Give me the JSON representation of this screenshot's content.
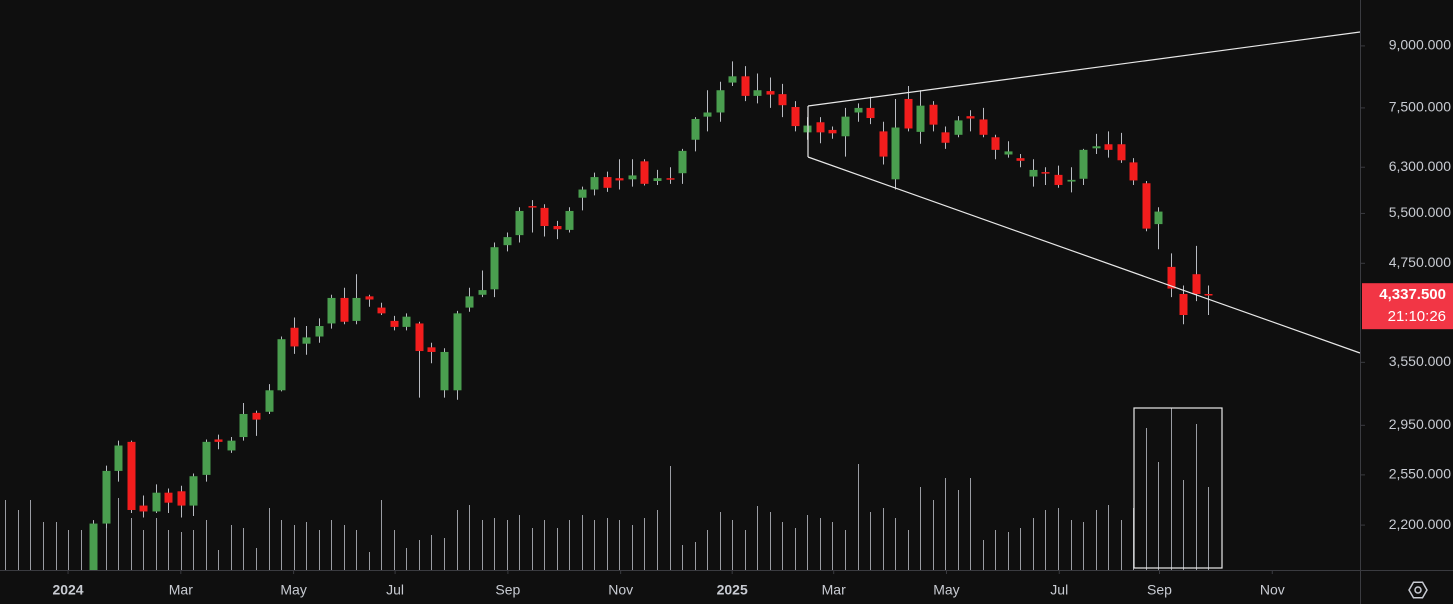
{
  "chart_data": {
    "type": "candlestick",
    "log_scale": true,
    "xlim": [
      -5.43,
      103.1
    ],
    "ylim": [
      1928,
      10300
    ],
    "yticks": [
      {
        "value": 9000,
        "label": "9,000.000"
      },
      {
        "value": 7500,
        "label": "7,500.000"
      },
      {
        "value": 6300,
        "label": "6,300.000"
      },
      {
        "value": 5500,
        "label": "5,500.000"
      },
      {
        "value": 4750,
        "label": "4,750.000"
      },
      {
        "value": 3550,
        "label": "3,550.000"
      },
      {
        "value": 2950,
        "label": "2,950.000"
      },
      {
        "value": 2550,
        "label": "2,550.000"
      },
      {
        "value": 2200,
        "label": "2,200.000"
      }
    ],
    "xticks": [
      {
        "value": 0,
        "label": "2024"
      },
      {
        "value": 9,
        "label": "Mar"
      },
      {
        "value": 18,
        "label": "May"
      },
      {
        "value": 26.1,
        "label": "Jul"
      },
      {
        "value": 35.1,
        "label": "Sep"
      },
      {
        "value": 44.1,
        "label": "Nov"
      },
      {
        "value": 53,
        "label": "2025"
      },
      {
        "value": 61.1,
        "label": "Mar"
      },
      {
        "value": 70.1,
        "label": "May"
      },
      {
        "value": 79.1,
        "label": "Jul"
      },
      {
        "value": 87.1,
        "label": "Sep"
      },
      {
        "value": 96.1,
        "label": "Nov"
      }
    ],
    "up_color": "#4a9e4f",
    "down_color": "#f21d1d",
    "x": [
      2,
      3,
      4,
      5,
      6,
      7,
      8,
      9,
      10,
      11,
      12,
      13,
      14,
      15,
      16,
      17,
      18,
      19,
      20,
      21,
      22,
      23,
      24,
      25,
      26,
      27,
      28,
      29,
      30,
      31,
      32,
      33,
      34,
      35,
      36,
      37,
      38,
      39,
      40,
      41,
      42,
      43,
      44,
      45,
      46,
      47,
      48,
      49,
      50,
      51,
      52,
      53,
      54,
      55,
      56,
      57,
      58,
      59,
      60,
      61,
      62,
      63,
      64,
      65,
      66,
      67,
      68,
      69,
      70,
      71,
      72,
      73,
      74,
      75,
      76,
      77,
      78,
      79,
      80,
      81,
      82,
      83,
      84,
      85,
      86,
      87,
      88,
      89,
      90,
      91
    ],
    "open": [
      1880,
      2210,
      2580,
      2810,
      2330,
      2290,
      2420,
      2430,
      2330,
      2550,
      2830,
      2740,
      2850,
      3060,
      3070,
      3270,
      3930,
      3750,
      3830,
      3980,
      4290,
      4010,
      4310,
      4170,
      4010,
      3940,
      3980,
      3710,
      3270,
      3270,
      4170,
      4330,
      4400,
      5010,
      5160,
      5620,
      5590,
      5300,
      5240,
      5760,
      5900,
      6120,
      6100,
      6080,
      6410,
      6050,
      6100,
      6190,
      6830,
      7310,
      7400,
      8080,
      8230,
      7770,
      7880,
      7810,
      7520,
      6980,
      7190,
      7030,
      6900,
      7400,
      7500,
      7000,
      6080,
      7700,
      6990,
      7570,
      6980,
      6930,
      7320,
      7250,
      6880,
      6540,
      6470,
      6130,
      6210,
      6160,
      6040,
      6090,
      6660,
      6740,
      6740,
      6390,
      6010,
      5330,
      4700,
      4340,
      4600,
      4340
    ],
    "high": [
      2230,
      2620,
      2820,
      2820,
      2400,
      2480,
      2450,
      2470,
      2560,
      2830,
      2870,
      2850,
      3150,
      3080,
      3330,
      3830,
      4050,
      3950,
      4040,
      4330,
      4420,
      4600,
      4330,
      4230,
      4070,
      4100,
      4000,
      3760,
      3700,
      4130,
      4420,
      4650,
      5050,
      5200,
      5600,
      5720,
      5650,
      5380,
      5600,
      5950,
      6200,
      6220,
      6450,
      6450,
      6450,
      6250,
      6300,
      6650,
      7300,
      7900,
      8100,
      8600,
      8480,
      8300,
      8200,
      8050,
      7650,
      7300,
      7300,
      7100,
      7500,
      7600,
      7750,
      7200,
      7700,
      8000,
      7900,
      7650,
      7100,
      7320,
      7450,
      7500,
      6930,
      6800,
      6550,
      6450,
      6300,
      6330,
      6300,
      6650,
      6950,
      7000,
      6970,
      6470,
      6050,
      5600,
      4890,
      4450,
      5000,
      4450
    ],
    "low": [
      1850,
      2180,
      2500,
      2280,
      2250,
      2280,
      2280,
      2250,
      2260,
      2500,
      2750,
      2720,
      2820,
      2860,
      3050,
      3260,
      3640,
      3630,
      3760,
      3920,
      3970,
      3970,
      4180,
      4080,
      3900,
      3900,
      3200,
      3540,
      3200,
      3180,
      4120,
      4300,
      4300,
      4920,
      5050,
      5200,
      5140,
      5100,
      5200,
      5550,
      5800,
      5860,
      5900,
      5950,
      5970,
      5980,
      6000,
      6000,
      6600,
      7000,
      7200,
      8000,
      7650,
      7600,
      7500,
      7300,
      7000,
      6830,
      6760,
      6850,
      6500,
      7200,
      7150,
      6350,
      5900,
      7000,
      6750,
      7000,
      6650,
      6880,
      7000,
      6880,
      6450,
      6480,
      6300,
      5950,
      5980,
      5930,
      5850,
      5980,
      6550,
      6480,
      6380,
      5980,
      5220,
      4950,
      4300,
      3970,
      4250,
      4080
    ],
    "close": [
      2210,
      2580,
      2780,
      2300,
      2290,
      2420,
      2350,
      2330,
      2540,
      2810,
      2810,
      2820,
      3050,
      3000,
      3270,
      3800,
      3720,
      3820,
      3950,
      4290,
      4000,
      4290,
      4270,
      4100,
      3940,
      4060,
      3670,
      3660,
      3660,
      4100,
      4310,
      4390,
      4980,
      5130,
      5540,
      5600,
      5300,
      5250,
      5540,
      5900,
      6120,
      5930,
      6060,
      6150,
      6000,
      6100,
      6080,
      6610,
      7260,
      7400,
      7900,
      8230,
      7770,
      7900,
      7800,
      7560,
      7110,
      7120,
      6980,
      6960,
      7310,
      7500,
      7280,
      6500,
      7080,
      7060,
      7550,
      7140,
      6770,
      7230,
      7270,
      6930,
      6630,
      6600,
      6420,
      6250,
      6190,
      5980,
      6070,
      6630,
      6700,
      6630,
      6430,
      6060,
      5260,
      5530,
      4410,
      4080,
      4340,
      4337.5
    ],
    "volume": {
      "color": "#9a9ca3",
      "x": [
        -5,
        -4,
        -3,
        -2,
        -1,
        0,
        1,
        2,
        3,
        4,
        5,
        6,
        7,
        8,
        9,
        10,
        11,
        12,
        13,
        14,
        15,
        16,
        17,
        18,
        19,
        20,
        21,
        22,
        23,
        24,
        25,
        26,
        27,
        28,
        29,
        30,
        31,
        32,
        33,
        34,
        35,
        36,
        37,
        38,
        39,
        40,
        41,
        42,
        43,
        44,
        45,
        46,
        47,
        48,
        49,
        50,
        51,
        52,
        53,
        54,
        55,
        56,
        57,
        58,
        59,
        60,
        61,
        62,
        63,
        64,
        65,
        66,
        67,
        68,
        69,
        70,
        71,
        72,
        73,
        74,
        75,
        76,
        77,
        78,
        79,
        80,
        81,
        82,
        83,
        84,
        85,
        86,
        87,
        88,
        89,
        90,
        91
      ],
      "values": [
        70,
        60,
        70,
        48,
        48,
        40,
        40,
        50,
        50,
        72,
        52,
        40,
        52,
        40,
        38,
        40,
        50,
        20,
        45,
        42,
        22,
        62,
        50,
        45,
        48,
        40,
        50,
        45,
        40,
        18,
        70,
        40,
        22,
        30,
        35,
        32,
        60,
        65,
        50,
        52,
        50,
        55,
        42,
        50,
        42,
        50,
        55,
        50,
        52,
        50,
        45,
        52,
        60,
        104,
        25,
        28,
        40,
        58,
        50,
        40,
        64,
        58,
        48,
        42,
        55,
        52,
        48,
        40,
        106,
        58,
        62,
        52,
        40,
        83,
        70,
        92,
        80,
        92,
        30,
        40,
        38,
        42,
        52,
        60,
        62,
        50,
        48,
        60,
        65,
        50,
        62,
        142,
        108,
        162,
        90,
        146,
        83
      ]
    },
    "last_price": {
      "value": 4337.5,
      "label": "4,337.500"
    },
    "countdown": "21:10:26"
  }
}
